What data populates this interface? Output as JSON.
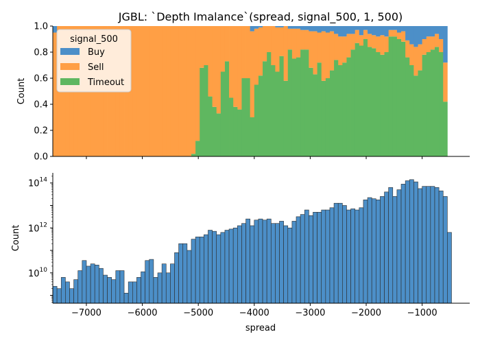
{
  "title": "JGBL: `Depth Imalance`(spread, signal_500, 1, 500)",
  "colors": {
    "buy": "#4c8fc8",
    "sell": "#ff9f45",
    "timeout": "#5fb760",
    "hist": "#4c8fc8"
  },
  "chart_data": [
    {
      "type": "area",
      "stacked": true,
      "normalized": true,
      "ylabel": "Count",
      "xlim": [
        -7600,
        -150
      ],
      "ylim": [
        0,
        1.0
      ],
      "yticks": [
        "0.0",
        "0.2",
        "0.4",
        "0.6",
        "0.8",
        "1.0"
      ],
      "xticks": [
        -7000,
        -6000,
        -5000,
        -4000,
        -3000,
        -2000,
        -1000
      ],
      "legend": {
        "title": "signal_500",
        "placement": "top-left",
        "entries": [
          "Buy",
          "Sell",
          "Timeout"
        ]
      },
      "bin_start": -7600,
      "bin_width": 75,
      "series": [
        {
          "name": "Timeout",
          "values": [
            0,
            0,
            0,
            0,
            0,
            0,
            0,
            0,
            0,
            0,
            0,
            0,
            0,
            0,
            0,
            0,
            0,
            0,
            0,
            0,
            0,
            0,
            0,
            0,
            0,
            0,
            0,
            0,
            0,
            0,
            0,
            0,
            0,
            0.02,
            0.12,
            0.68,
            0.7,
            0.46,
            0.38,
            0.33,
            0.65,
            0.73,
            0.45,
            0.38,
            0.36,
            0.6,
            0.6,
            0.3,
            0.55,
            0.62,
            0.73,
            0.8,
            0.7,
            0.65,
            0.77,
            0.58,
            0.82,
            0.75,
            0.76,
            0.82,
            0.82,
            0.68,
            0.63,
            0.72,
            0.58,
            0.6,
            0.66,
            0.74,
            0.7,
            0.72,
            0.76,
            0.82,
            0.87,
            0.85,
            0.9,
            0.84,
            0.83,
            0.8,
            0.78,
            0.8,
            0.92,
            0.92,
            0.9,
            0.88,
            0.76,
            0.7,
            0.62,
            0.66,
            0.78,
            0.8,
            0.82,
            0.84,
            0.8,
            0.42
          ]
        },
        {
          "name": "Sell",
          "values": [
            0.95,
            1.0,
            1.0,
            1.0,
            1.0,
            1.0,
            1.0,
            1.0,
            1.0,
            1.0,
            1.0,
            1.0,
            1.0,
            1.0,
            1.0,
            1.0,
            1.0,
            1.0,
            1.0,
            1.0,
            1.0,
            1.0,
            1.0,
            1.0,
            1.0,
            1.0,
            1.0,
            1.0,
            1.0,
            1.0,
            1.0,
            1.0,
            1.0,
            0.98,
            0.88,
            0.32,
            0.3,
            0.54,
            0.62,
            0.67,
            0.35,
            0.27,
            0.55,
            0.62,
            0.64,
            0.4,
            0.4,
            0.66,
            0.43,
            0.37,
            0.27,
            0.2,
            0.3,
            0.34,
            0.22,
            0.42,
            0.16,
            0.23,
            0.22,
            0.15,
            0.15,
            0.28,
            0.33,
            0.23,
            0.38,
            0.35,
            0.3,
            0.2,
            0.22,
            0.2,
            0.18,
            0.12,
            0.1,
            0.08,
            0.07,
            0.1,
            0.1,
            0.12,
            0.15,
            0.12,
            0.05,
            0.05,
            0.05,
            0.08,
            0.13,
            0.16,
            0.22,
            0.2,
            0.12,
            0.12,
            0.1,
            0.1,
            0.1,
            0.3
          ]
        },
        {
          "name": "Buy",
          "values": [
            0.05,
            0,
            0,
            0,
            0,
            0,
            0,
            0,
            0,
            0,
            0,
            0,
            0,
            0,
            0,
            0,
            0,
            0,
            0,
            0,
            0,
            0,
            0,
            0,
            0,
            0,
            0,
            0,
            0,
            0,
            0,
            0,
            0,
            0,
            0,
            0,
            0,
            0,
            0,
            0,
            0,
            0,
            0,
            0,
            0,
            0,
            0,
            0.04,
            0.02,
            0.01,
            0,
            0,
            0,
            0.01,
            0.01,
            0,
            0.02,
            0.02,
            0.02,
            0.03,
            0.03,
            0.04,
            0.04,
            0.05,
            0.04,
            0.05,
            0.04,
            0.06,
            0.08,
            0.08,
            0.06,
            0.06,
            0.03,
            0.07,
            0.03,
            0.06,
            0.07,
            0.08,
            0.07,
            0.08,
            0.03,
            0.03,
            0.05,
            0.04,
            0.11,
            0.14,
            0.16,
            0.14,
            0.1,
            0.08,
            0.08,
            0.06,
            0.1,
            0.28
          ]
        }
      ]
    },
    {
      "type": "bar",
      "subtype": "histogram",
      "xlabel": "spread",
      "ylabel": "Count",
      "yscale": "log",
      "ylim_log10": [
        8.65,
        14.45
      ],
      "yticks": [
        {
          "base": "10",
          "exp": "10",
          "log10": 10
        },
        {
          "base": "10",
          "exp": "12",
          "log10": 12
        },
        {
          "base": "10",
          "exp": "14",
          "log10": 14
        }
      ],
      "xlim": [
        -7600,
        -150
      ],
      "xticks": [
        "−7000",
        "−6000",
        "−5000",
        "−4000",
        "−3000",
        "−2000",
        "−1000"
      ],
      "xtick_values": [
        -7000,
        -6000,
        -5000,
        -4000,
        -3000,
        -2000,
        -1000
      ],
      "bin_start": -7600,
      "bin_width": 75,
      "log10_values": [
        9.4,
        9.3,
        9.8,
        9.6,
        9.3,
        9.7,
        10.1,
        10.55,
        10.3,
        10.4,
        10.35,
        10.2,
        9.9,
        9.8,
        9.7,
        10.1,
        10.1,
        9.1,
        9.6,
        9.6,
        9.8,
        10.05,
        10.55,
        10.6,
        9.8,
        10.0,
        10.4,
        10.0,
        10.4,
        10.9,
        11.3,
        11.3,
        11.0,
        11.5,
        11.6,
        11.6,
        11.7,
        11.9,
        11.85,
        11.7,
        11.8,
        11.9,
        11.95,
        12.0,
        12.1,
        12.2,
        12.4,
        12.1,
        12.35,
        12.4,
        12.35,
        12.4,
        12.2,
        12.2,
        12.3,
        12.1,
        12.0,
        12.3,
        12.5,
        12.6,
        12.8,
        12.55,
        12.7,
        12.7,
        12.8,
        12.8,
        12.9,
        13.1,
        13.1,
        13.0,
        12.8,
        12.85,
        12.8,
        12.9,
        13.25,
        13.35,
        13.3,
        13.25,
        13.4,
        13.6,
        13.8,
        13.4,
        13.7,
        13.95,
        14.1,
        14.15,
        14.05,
        13.75,
        13.85,
        13.85,
        13.85,
        13.8,
        13.65,
        13.4,
        11.8
      ]
    }
  ]
}
